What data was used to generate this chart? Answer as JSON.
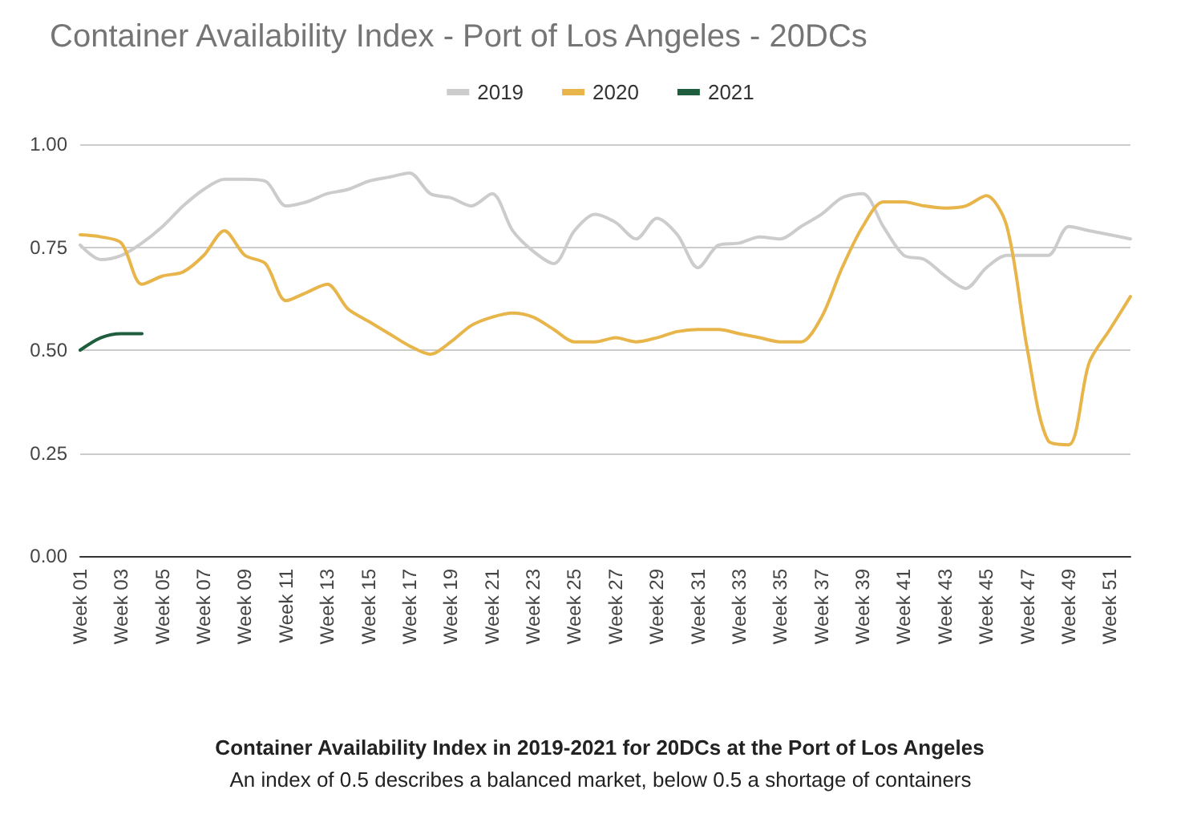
{
  "chart_data": {
    "type": "line",
    "title": "Container Availability Index - Port of Los Angeles - 20DCs",
    "annotations": [
      "Container Availability Index in 2019-2021 for 20DCs at the Port of Los Angeles",
      "An index of 0.5 describes a balanced market, below 0.5 a shortage of containers"
    ],
    "categories": [
      "Week 01",
      null,
      "Week 03",
      null,
      "Week 05",
      null,
      "Week 07",
      null,
      "Week 09",
      null,
      "Week 11",
      null,
      "Week 13",
      null,
      "Week 15",
      null,
      "Week 17",
      null,
      "Week 19",
      null,
      "Week 21",
      null,
      "Week 23",
      null,
      "Week 25",
      null,
      "Week 27",
      null,
      "Week 29",
      null,
      "Week 31",
      null,
      "Week 33",
      null,
      "Week 35",
      null,
      "Week 37",
      null,
      "Week 39",
      null,
      "Week 41",
      null,
      "Week 43",
      null,
      "Week 45",
      null,
      "Week 47",
      null,
      "Week 49",
      null,
      "Week 51",
      null
    ],
    "series": [
      {
        "name": "2019",
        "color": "#cccccc",
        "values": [
          0.755,
          0.72,
          0.73,
          0.76,
          0.8,
          0.85,
          0.89,
          0.915,
          0.915,
          0.91,
          0.85,
          0.86,
          0.88,
          0.89,
          0.91,
          0.92,
          0.93,
          0.88,
          0.87,
          0.85,
          0.88,
          0.79,
          0.74,
          0.71,
          0.79,
          0.83,
          0.81,
          0.77,
          0.82,
          0.78,
          0.7,
          0.755,
          0.76,
          0.775,
          0.77,
          0.8,
          0.83,
          0.87,
          0.88,
          0.8,
          0.73,
          0.72,
          0.68,
          0.65,
          0.7,
          0.73,
          0.73,
          0.73,
          0.8,
          0.79,
          0.78,
          0.77
        ]
      },
      {
        "name": "2020",
        "color": "#e8b54a",
        "values": [
          0.78,
          0.775,
          0.76,
          0.66,
          0.68,
          0.69,
          0.73,
          0.79,
          0.73,
          0.71,
          0.62,
          0.64,
          0.66,
          0.6,
          0.57,
          0.54,
          0.51,
          0.49,
          0.52,
          0.56,
          0.58,
          0.59,
          0.58,
          0.55,
          0.52,
          0.52,
          0.53,
          0.52,
          0.53,
          0.545,
          0.55,
          0.55,
          0.54,
          0.53,
          0.52,
          0.52,
          0.58,
          0.7,
          0.8,
          0.86,
          0.86,
          0.85,
          0.845,
          0.85,
          0.875,
          0.8,
          0.5,
          0.28,
          0.27,
          0.47,
          0.55,
          0.63
        ]
      },
      {
        "name": "2021",
        "color": "#1e5e3f",
        "values": [
          0.5,
          0.53,
          0.54,
          0.54,
          null,
          null,
          null,
          null,
          null,
          null,
          null,
          null,
          null,
          null,
          null,
          null,
          null,
          null,
          null,
          null,
          null,
          null,
          null,
          null,
          null,
          null,
          null,
          null,
          null,
          null,
          null,
          null,
          null,
          null,
          null,
          null,
          null,
          null,
          null,
          null,
          null,
          null,
          null,
          null,
          null,
          null,
          null,
          null,
          null,
          null,
          null,
          null
        ]
      }
    ],
    "ylim": [
      0,
      1
    ],
    "yticks": [
      {
        "value": 0,
        "label": "0.00"
      },
      {
        "value": 0.25,
        "label": "0.25"
      },
      {
        "value": 0.5,
        "label": "0.50"
      },
      {
        "value": 0.75,
        "label": "0.75"
      },
      {
        "value": 1,
        "label": "1.00"
      }
    ],
    "grid": "y",
    "legend": "top",
    "marker": "none",
    "line_style": "solid"
  }
}
